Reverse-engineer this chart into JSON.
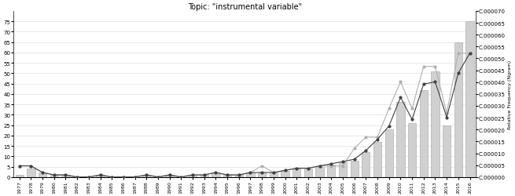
{
  "title": "Topic: \"instrumental variable\"",
  "years": [
    1977,
    1978,
    1979,
    1980,
    1981,
    1982,
    1983,
    1984,
    1985,
    1986,
    1987,
    1988,
    1989,
    1990,
    1991,
    1992,
    1993,
    1994,
    1995,
    1996,
    1997,
    1998,
    1999,
    2000,
    2001,
    2002,
    2003,
    2004,
    2005,
    2006,
    2007,
    2008,
    2009,
    2010,
    2011,
    2012,
    2013,
    2014,
    2015,
    2016
  ],
  "counts": [
    1,
    4,
    2,
    1,
    1,
    0,
    0,
    1,
    0,
    0,
    0,
    1,
    0,
    1,
    0,
    1,
    1,
    2,
    1,
    1,
    2,
    2,
    2,
    3,
    4,
    4,
    5,
    6,
    7,
    8,
    12,
    17,
    23,
    36,
    26,
    42,
    51,
    25,
    65,
    75
  ],
  "line1_vals": [
    4.7e-06,
    4.7e-06,
    1.9e-06,
    9e-07,
    9e-07,
    0.0,
    0.0,
    9e-07,
    0.0,
    0.0,
    0.0,
    9e-07,
    0.0,
    9e-07,
    0.0,
    9e-07,
    9e-07,
    1.9e-06,
    9e-07,
    9e-07,
    1.9e-06,
    4.7e-06,
    1.9e-06,
    2.8e-06,
    3.7e-06,
    3.7e-06,
    4.7e-06,
    4.7e-06,
    4.7e-06,
    1.21e-05,
    1.68e-05,
    1.68e-05,
    2.89e-05,
    4.01e-05,
    2.89e-05,
    4.66e-05,
    4.66e-05,
    2.7e-05,
    5.22e-05,
    5.22e-05
  ],
  "line2_vals": [
    4.7e-06,
    4.7e-06,
    1.9e-06,
    9e-07,
    9e-07,
    0.0,
    0.0,
    9e-07,
    0.0,
    0.0,
    0.0,
    9e-07,
    0.0,
    9e-07,
    0.0,
    9e-07,
    9e-07,
    1.9e-06,
    9e-07,
    9e-07,
    1.9e-06,
    1.9e-06,
    1.9e-06,
    2.8e-06,
    3.7e-06,
    3.7e-06,
    4.7e-06,
    5.6e-06,
    6.5e-06,
    7.5e-06,
    1.12e-05,
    1.59e-05,
    2.15e-05,
    3.36e-05,
    2.43e-05,
    3.92e-05,
    4.01e-05,
    2.52e-05,
    4.38e-05,
    5.22e-05
  ],
  "bar_color": "#d0d0d0",
  "bar_edge_color": "#b0b0b0",
  "line1_color": "#b0b0b0",
  "line2_color": "#404040",
  "right_ylabel": "Relative Frequency (Ngram)",
  "ylim_left": [
    0,
    80
  ],
  "ylim_right": [
    0,
    7e-05
  ],
  "yticks_left": [
    0,
    5,
    10,
    15,
    20,
    25,
    30,
    35,
    40,
    45,
    50,
    55,
    60,
    65,
    70,
    75
  ],
  "yticks_right": [
    0.0,
    5e-06,
    1e-05,
    1.5e-05,
    2e-05,
    2.5e-05,
    3e-05,
    3.5e-05,
    4e-05,
    4.5e-05,
    5e-05,
    5.5e-05,
    6e-05,
    6.5e-05,
    7e-05
  ],
  "background_color": "#ffffff",
  "grid_color": "#e0e0e0"
}
